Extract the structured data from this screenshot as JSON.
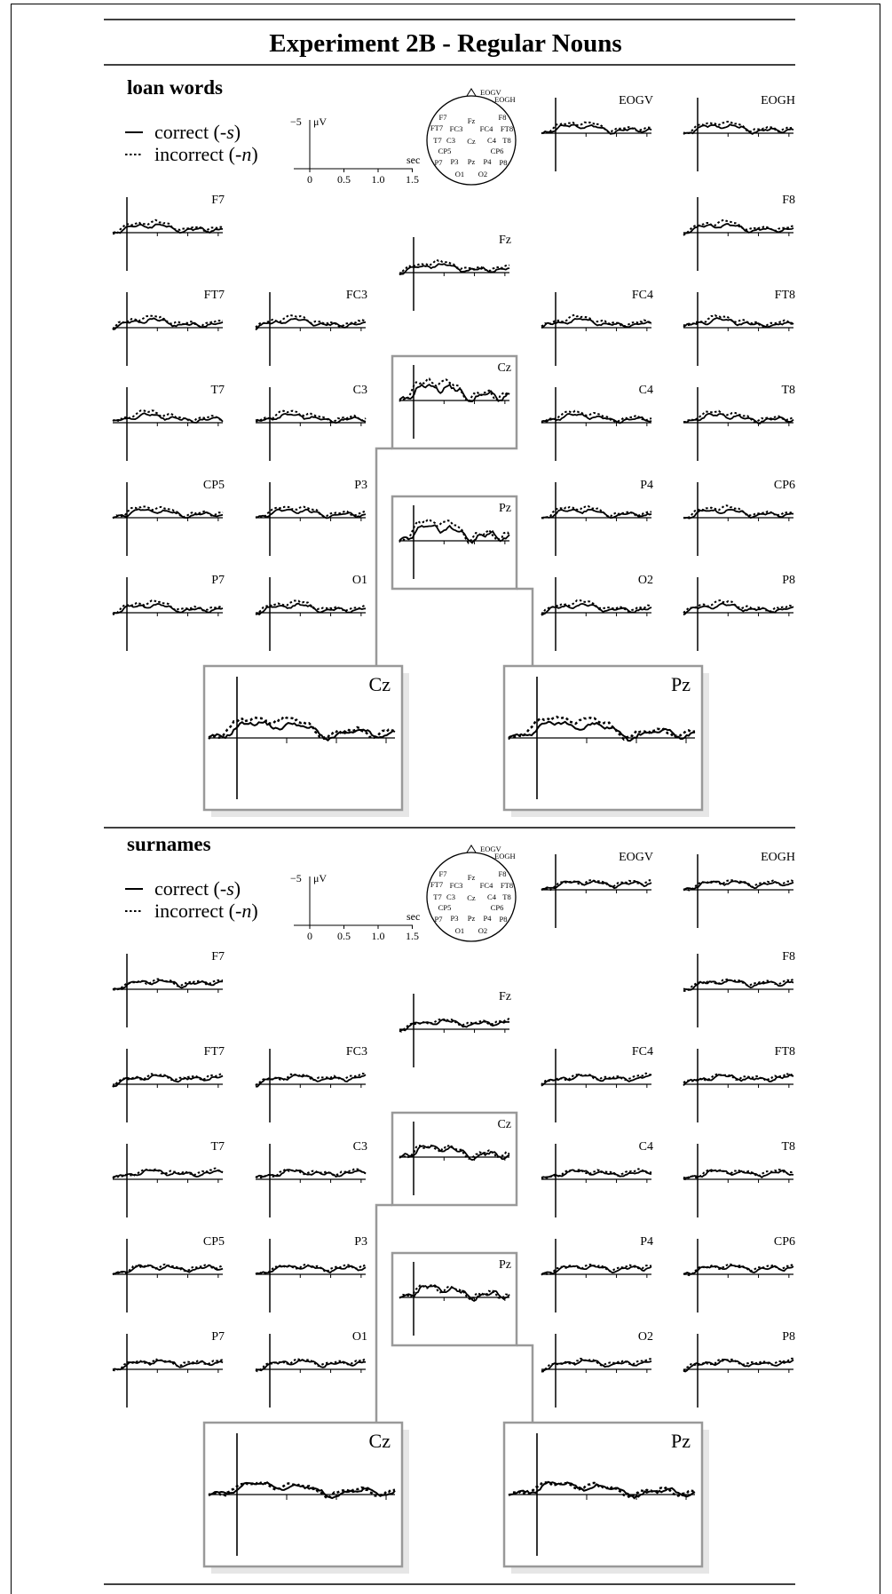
{
  "title": "Experiment 2B - Regular Nouns",
  "legend": {
    "correct_label": "correct (",
    "correct_suffix": "-s",
    "incorrect_label": "incorrect (",
    "incorrect_suffix": "-n",
    "close_paren": ")"
  },
  "scale": {
    "y_label": "−5",
    "y_unit": "μV",
    "x_ticks": [
      "0",
      "0.5",
      "1.0",
      "1.5"
    ],
    "x_unit": "sec"
  },
  "head_map": {
    "eog_labels": [
      "EOGV",
      "EOGH"
    ],
    "electrodes": [
      "F7",
      "Fz",
      "F8",
      "FT7",
      "FC3",
      "FC4",
      "FT8",
      "T7",
      "C3",
      "Cz",
      "C4",
      "T8",
      "CP5",
      "CP6",
      "P7",
      "P3",
      "Pz",
      "P4",
      "P8",
      "O1",
      "O2"
    ]
  },
  "chart_data": [
    {
      "type": "line",
      "title": "loan words",
      "xlabel": "sec",
      "ylabel": "μV",
      "xlim": [
        -0.15,
        1.5
      ],
      "ylim": [
        -5,
        0
      ],
      "grid": false,
      "legend_position": "top-left",
      "series": [
        {
          "name": "correct (-s)"
        },
        {
          "name": "incorrect (-n)"
        }
      ],
      "channels": [
        "EOGV",
        "EOGH",
        "F7",
        "Fz",
        "F8",
        "FT7",
        "FC3",
        "FC4",
        "FT8",
        "T7",
        "C3",
        "Cz",
        "C4",
        "T8",
        "CP5",
        "P3",
        "Pz",
        "P4",
        "CP6",
        "P7",
        "O1",
        "O2",
        "P8"
      ],
      "magnified": [
        "Cz",
        "Pz"
      ]
    },
    {
      "type": "line",
      "title": "surnames",
      "xlabel": "sec",
      "ylabel": "μV",
      "xlim": [
        -0.15,
        1.5
      ],
      "ylim": [
        -5,
        0
      ],
      "grid": false,
      "legend_position": "top-left",
      "series": [
        {
          "name": "correct (-s)"
        },
        {
          "name": "incorrect (-n)"
        }
      ],
      "channels": [
        "EOGV",
        "EOGH",
        "F7",
        "Fz",
        "F8",
        "FT7",
        "FC3",
        "FC4",
        "FT8",
        "T7",
        "C3",
        "Cz",
        "C4",
        "T8",
        "CP5",
        "P3",
        "Pz",
        "P4",
        "CP6",
        "P7",
        "O1",
        "O2",
        "P8"
      ],
      "magnified": [
        "Cz",
        "Pz"
      ]
    }
  ]
}
